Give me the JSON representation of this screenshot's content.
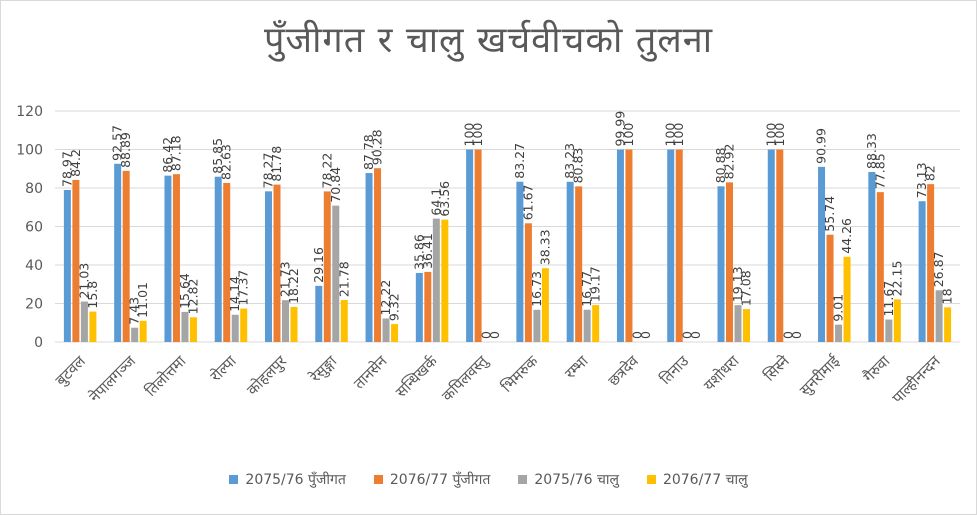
{
  "chart_data": {
    "type": "bar",
    "title": "पुँजीगत र चालु खर्चवीचको तुलना",
    "ylim": [
      0,
      120
    ],
    "yticks": [
      0,
      20,
      40,
      60,
      80,
      100,
      120
    ],
    "grid": true,
    "legend_position": "bottom",
    "categories": [
      "बुटवल",
      "नेपालगञ्ज",
      "तिलोत्तमा",
      "रोल्पा",
      "कोहलपुर",
      "रेसुङ्गा",
      "तानसेन",
      "सन्धिखर्क",
      "कपिलवस्तु",
      "भिमरुक",
      "रम्भा",
      "छत्रदेव",
      "तिनाउ",
      "यशोधरा",
      "सिस्ने",
      "सुनरीमाई",
      "गैरुवा",
      "पाल्हीनन्दन"
    ],
    "series": [
      {
        "name": "2075/76 पुँजीगत",
        "color": "#5b9bd5",
        "values": [
          78.97,
          92.57,
          86.42,
          85.85,
          78.27,
          29.16,
          87.78,
          35.86,
          100,
          83.27,
          83.23,
          99.99,
          100,
          80.88,
          100,
          90.99,
          88.33,
          73.13
        ]
      },
      {
        "name": "2076/77 पुँजीगत",
        "color": "#ed7d31",
        "values": [
          84.2,
          88.89,
          87.18,
          82.63,
          81.78,
          78.22,
          90.28,
          36.41,
          100,
          61.67,
          80.83,
          100,
          100,
          82.92,
          100,
          55.74,
          77.85,
          82
        ]
      },
      {
        "name": "2075/76 चालु",
        "color": "#a5a5a5",
        "values": [
          21.03,
          7.43,
          15.64,
          14.14,
          21.73,
          70.84,
          12.22,
          64.1,
          0,
          16.73,
          16.77,
          0,
          0,
          19.13,
          0,
          9.01,
          11.67,
          26.87
        ]
      },
      {
        "name": "2076/77 चालु",
        "color": "#ffc000",
        "values": [
          15.8,
          11.01,
          12.82,
          17.37,
          18.22,
          21.78,
          9.32,
          63.56,
          0,
          38.33,
          19.17,
          0,
          0,
          17.08,
          0,
          44.26,
          22.15,
          18
        ]
      }
    ],
    "data_label_text": [
      [
        "78.97",
        "92.57",
        "86.42",
        "85.85",
        "78.27",
        "29.16",
        "87.78",
        "35.86",
        "100",
        "83.27",
        "83.23",
        "99.99",
        "100",
        "80.88",
        "100",
        "90.99",
        "88.33",
        "73.13"
      ],
      [
        "84.2",
        "88.89",
        "87.18",
        "82.63",
        "81.78",
        "78.22",
        "90.28",
        "36.41",
        "100",
        "61.67",
        "80.83",
        "100",
        "100",
        "82.92",
        "100",
        "55.74",
        "77.85",
        "82"
      ],
      [
        "21.03",
        "7.43",
        "15.64",
        "14.14",
        "21.73",
        "70.84",
        "12.22",
        "64.1",
        "0",
        "16.73",
        "16.77",
        "0",
        "0",
        "19.13",
        "0",
        "9.01",
        "11.67",
        "26.87"
      ],
      [
        "15.8",
        "11.01",
        "12.82",
        "17.37",
        "18.22",
        "21.78",
        "9.32",
        "63.56",
        "0",
        "38.33",
        "19.17",
        "0",
        "0",
        "17.08",
        "0",
        "44.26",
        "22.15",
        "18"
      ]
    ]
  }
}
